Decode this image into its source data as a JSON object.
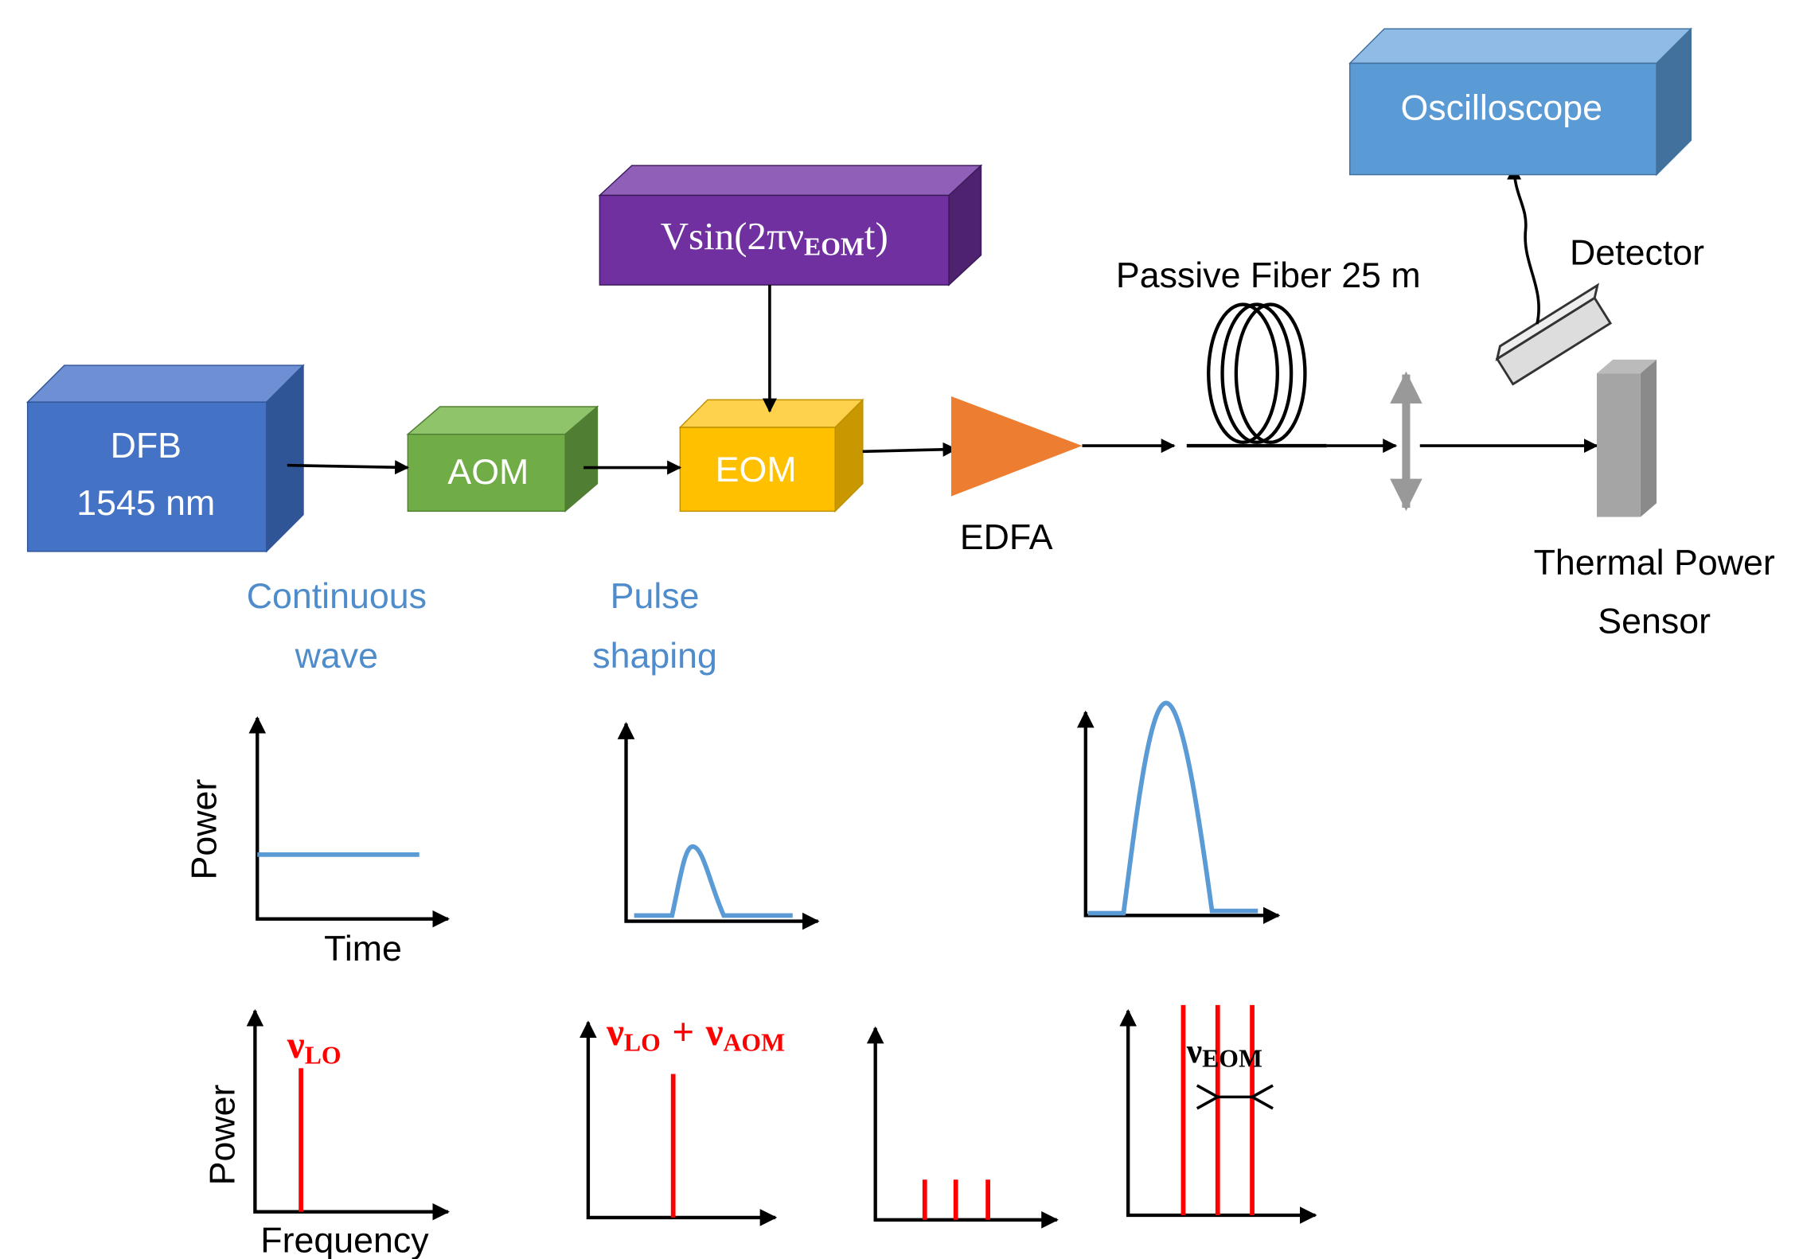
{
  "blocks": {
    "dfb": [
      "DFB",
      "1545 nm"
    ],
    "aom": "AOM",
    "eom": "EOM",
    "edfa": "EDFA",
    "oscilloscope": "Oscilloscope",
    "detector": "Detector",
    "sensor": [
      "Thermal Power",
      "Sensor"
    ],
    "fiber": "Passive Fiber 25 m",
    "driver": {
      "text": "Vsin(2πν",
      "sub": "EOM",
      "tail": "t)"
    }
  },
  "stages": {
    "cw": [
      "Continuous",
      "wave"
    ],
    "pulse": [
      "Pulse",
      "shaping"
    ]
  },
  "plots": {
    "time_y": "Power",
    "time_x": "Time",
    "freq_y": "Power",
    "freq_x": "Frequency"
  },
  "spectra": {
    "lo": {
      "text": "ν",
      "sub": "LO"
    },
    "shifted": {
      "text": "ν",
      "sub": "LO",
      "plus": "+",
      "text2": "ν",
      "sub2": "AOM"
    },
    "eom": {
      "text": "ν",
      "sub": "EOM"
    }
  }
}
